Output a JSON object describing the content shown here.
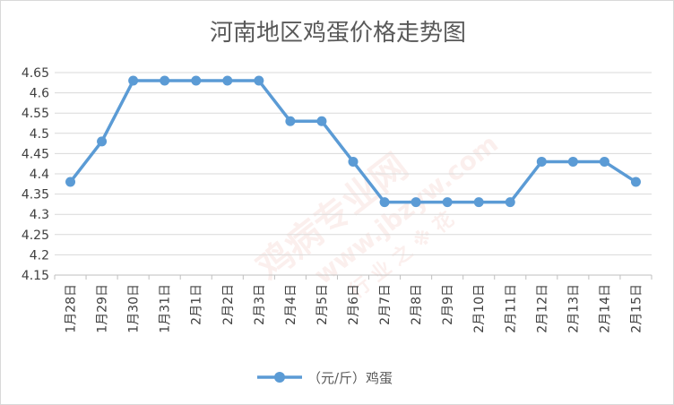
{
  "chart_data": {
    "type": "line",
    "title": "河南地区鸡蛋价格走势图",
    "categories": [
      "1月28日",
      "1月29日",
      "1月30日",
      "1月31日",
      "2月1日",
      "2月2日",
      "2月3日",
      "2月4日",
      "2月5日",
      "2月6日",
      "2月7日",
      "2月8日",
      "2月9日",
      "2月10日",
      "2月11日",
      "2月12日",
      "2月13日",
      "2月14日",
      "2月15日"
    ],
    "series": [
      {
        "name": "（元/斤）鸡蛋",
        "values": [
          4.38,
          4.48,
          4.63,
          4.63,
          4.63,
          4.63,
          4.63,
          4.53,
          4.53,
          4.43,
          4.33,
          4.33,
          4.33,
          4.33,
          4.33,
          4.43,
          4.43,
          4.43,
          4.38
        ],
        "color": "#5b9bd5"
      }
    ],
    "ylim": [
      4.15,
      4.65
    ],
    "yticks": [
      "4.15",
      "4.2",
      "4.25",
      "4.3",
      "4.35",
      "4.4",
      "4.45",
      "4.5",
      "4.55",
      "4.6",
      "4.65"
    ],
    "grid": true,
    "legend_position": "bottom",
    "xlabel": "",
    "ylabel": ""
  },
  "watermark": {
    "text_cn": "鸡病专业网",
    "text_url": "www.jbzyw.com",
    "text_sub": "行 业 之 ※ 花"
  }
}
